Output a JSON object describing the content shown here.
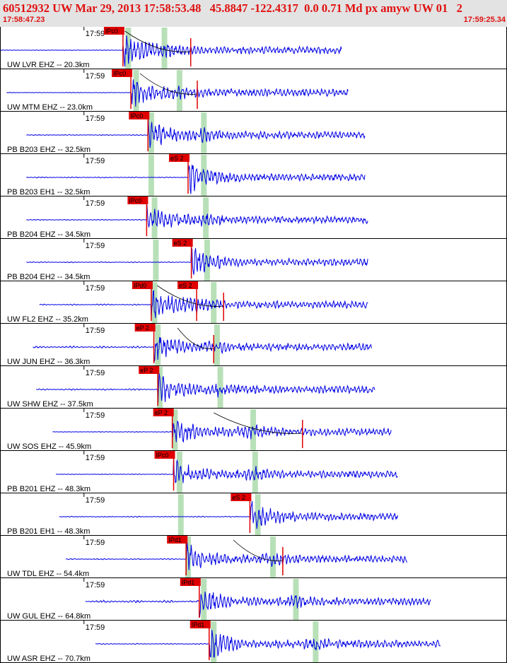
{
  "header": {
    "title": "60512932 UW Mar 29, 2013 17:58:53.48   45.8847 -122.4317  0.0 0.71 Md px amyw UW 01   2",
    "time_start": "17:58:47.23",
    "time_end": "17:59:25.34"
  },
  "colors": {
    "trace": "#0000e6",
    "pick": "#e00000",
    "window": "#b8e0b8",
    "header_bg": "#e3e3e3",
    "header_text": "#e01010"
  },
  "chart_data": {
    "type": "line",
    "x_range_seconds": [
      "17:58:47.23",
      "17:59:25.34"
    ],
    "minute_tick_label": "17:59",
    "traces": [
      {
        "label": "UW LVR EHZ -- 20.3km",
        "picks": [
          "IPc0"
        ],
        "pick_t": [
          18.7
        ],
        "s_t": [],
        "windows": [
          19.5,
          25.0
        ],
        "trace_start": 0.0,
        "trace_end": 52.0,
        "coda_end": 29.0,
        "pre_amp": 0.3
      },
      {
        "label": "UW MTM EHZ -- 23.0km",
        "picks": [
          "IPc0"
        ],
        "pick_t": [
          19.9
        ],
        "s_t": [],
        "windows": [
          20.7,
          27.3
        ],
        "trace_start": 1.0,
        "trace_end": 53.0,
        "coda_end": 30.0,
        "pre_amp": 0.3
      },
      {
        "label": "PB B203 EHZ -- 32.5km",
        "picks": [
          "IPc0"
        ],
        "pick_t": [
          22.5
        ],
        "s_t": [],
        "windows": [
          23.0,
          31.0
        ],
        "trace_start": 4.0,
        "trace_end": 55.5,
        "coda_end": 0,
        "pre_amp": 0.5
      },
      {
        "label": "PB B203 EH1 -- 32.5km",
        "picks": [
          "eS 2"
        ],
        "pick_t": [
          28.6
        ],
        "s_t": [
          28.6
        ],
        "windows": [
          23.0,
          31.0
        ],
        "trace_start": 4.0,
        "trace_end": 55.5,
        "coda_end": 0,
        "pre_amp": 0.5
      },
      {
        "label": "PB B204 EHZ -- 34.5km",
        "picks": [
          "IPc0"
        ],
        "pick_t": [
          22.3
        ],
        "s_t": [],
        "windows": [
          23.5,
          31.3
        ],
        "trace_start": 4.0,
        "trace_end": 56.0,
        "coda_end": 0,
        "pre_amp": 0.5
      },
      {
        "label": "PB B204 EH2 -- 34.5km",
        "picks": [
          "eS 2"
        ],
        "pick_t": [
          29.1
        ],
        "s_t": [
          29.1
        ],
        "windows": [
          23.7,
          31.5
        ],
        "trace_start": 4.0,
        "trace_end": 56.0,
        "coda_end": 0,
        "pre_amp": 0.5
      },
      {
        "label": "UW FL2 EHZ -- 35.2km",
        "picks": [
          "IPd0",
          "eS 2"
        ],
        "pick_t": [
          23.0,
          29.9
        ],
        "s_t": [
          29.9
        ],
        "windows": [
          23.5,
          32.5
        ],
        "trace_start": 6.0,
        "trace_end": 56.0,
        "coda_end": 34.0,
        "pre_amp": 0.6
      },
      {
        "label": "UW JUN EHZ -- 36.3km",
        "picks": [
          "eP 2"
        ],
        "pick_t": [
          23.4
        ],
        "s_t": [],
        "windows": [
          24.0,
          33.0
        ],
        "trace_start": 5.0,
        "trace_end": 56.5,
        "coda_end": 32.5,
        "pre_amp": 1.0
      },
      {
        "label": "UW SHW EHZ -- 37.5km",
        "picks": [
          "eP 2"
        ],
        "pick_t": [
          24.0
        ],
        "s_t": [],
        "windows": [
          24.3,
          33.5
        ],
        "trace_start": 5.5,
        "trace_end": 57.0,
        "coda_end": 0,
        "pre_amp": 0.8
      },
      {
        "label": "UW SOS EHZ -- 45.9km",
        "picks": [
          "eP 2"
        ],
        "pick_t": [
          26.2
        ],
        "s_t": [],
        "windows": [
          26.6,
          38.5
        ],
        "trace_start": 8.0,
        "trace_end": 59.5,
        "coda_end": 46.0,
        "pre_amp": 0.4
      },
      {
        "label": "PB B201 EHZ -- 48.3km",
        "picks": [
          "IPc0"
        ],
        "pick_t": [
          26.4
        ],
        "s_t": [],
        "windows": [
          27.3,
          38.8
        ],
        "trace_start": 8.5,
        "trace_end": 60.5,
        "coda_end": 0,
        "pre_amp": 0.4
      },
      {
        "label": "PB B201 EH1 -- 48.3km",
        "picks": [
          "eS 2"
        ],
        "pick_t": [
          38.0
        ],
        "s_t": [
          38.0
        ],
        "windows": [
          27.5,
          39.2
        ],
        "trace_start": 9.0,
        "trace_end": 60.5,
        "coda_end": 0,
        "pre_amp": 0.5
      },
      {
        "label": "UW TDL EHZ -- 54.4km",
        "picks": [
          "IPd1"
        ],
        "pick_t": [
          28.3
        ],
        "s_t": [],
        "windows": [
          28.6,
          41.5
        ],
        "trace_start": 10.0,
        "trace_end": 62.0,
        "coda_end": 43.0,
        "pre_amp": 0.6
      },
      {
        "label": "UW GUL EHZ -- 64.8km",
        "picks": [
          "IPd1"
        ],
        "pick_t": [
          30.3
        ],
        "s_t": [],
        "windows": [
          31.0,
          45.0
        ],
        "trace_start": 13.0,
        "trace_end": 65.5,
        "coda_end": 0,
        "pre_amp": 1.2
      },
      {
        "label": "UW ASR EHZ -- 70.7km",
        "picks": [
          "IPd1"
        ],
        "pick_t": [
          31.8
        ],
        "s_t": [],
        "windows": [
          32.5,
          48.0
        ],
        "trace_start": 14.5,
        "trace_end": 67.0,
        "coda_end": 0,
        "pre_amp": 0.5
      }
    ]
  }
}
